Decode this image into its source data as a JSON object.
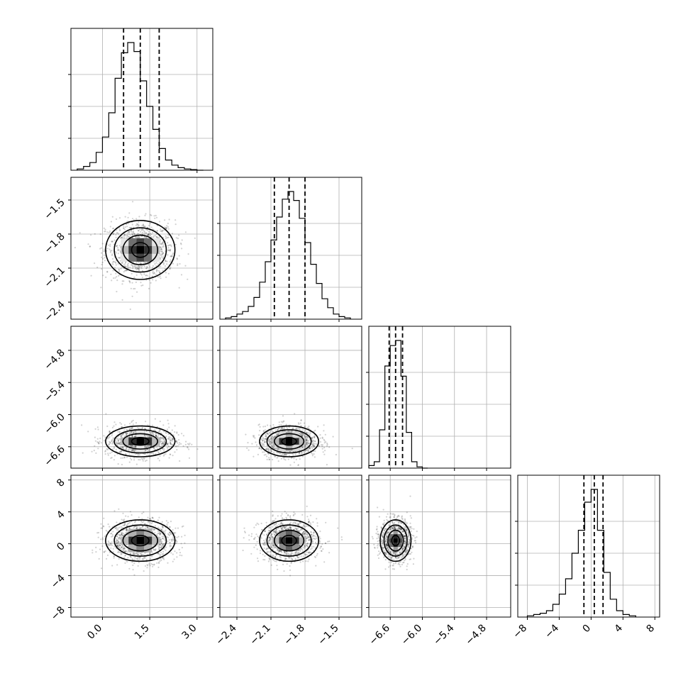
{
  "chart_data": {
    "type": "corner",
    "parameters": [
      {
        "range": [
          -1.0,
          3.5
        ],
        "ticks": [
          0.0,
          1.5,
          3.0
        ],
        "tick_labels": [
          "0.0",
          "1.5",
          "3.0"
        ],
        "quantiles": [
          0.67,
          1.2,
          1.8
        ],
        "center": 1.2,
        "spread": 0.55,
        "hist_bins": [
          -0.8,
          -0.6,
          -0.4,
          -0.2,
          0.0,
          0.2,
          0.4,
          0.6,
          0.8,
          1.0,
          1.2,
          1.4,
          1.6,
          1.8,
          2.0,
          2.2,
          2.4,
          2.6,
          2.8,
          3.0
        ],
        "hist_counts": [
          0.01,
          0.03,
          0.06,
          0.14,
          0.26,
          0.45,
          0.72,
          0.92,
          1.0,
          0.93,
          0.7,
          0.5,
          0.32,
          0.17,
          0.08,
          0.04,
          0.02,
          0.01,
          0.005,
          0.0
        ]
      },
      {
        "range": [
          -2.55,
          -1.3
        ],
        "ticks": [
          -2.4,
          -2.1,
          -1.8,
          -1.5
        ],
        "tick_labels": [
          "−2.4",
          "−2.1",
          "−1.8",
          "−1.5"
        ],
        "quantiles": [
          -2.07,
          -1.94,
          -1.8
        ],
        "center": -1.94,
        "spread": 0.13,
        "hist_bins": [
          -2.5,
          -2.45,
          -2.4,
          -2.35,
          -2.3,
          -2.25,
          -2.2,
          -2.15,
          -2.1,
          -2.05,
          -2.0,
          -1.95,
          -1.9,
          -1.85,
          -1.8,
          -1.75,
          -1.7,
          -1.65,
          -1.6,
          -1.55,
          -1.5,
          -1.45
        ],
        "hist_counts": [
          0.01,
          0.02,
          0.04,
          0.06,
          0.1,
          0.17,
          0.29,
          0.45,
          0.62,
          0.8,
          0.94,
          1.0,
          0.93,
          0.79,
          0.6,
          0.43,
          0.28,
          0.16,
          0.09,
          0.04,
          0.02,
          0.01
        ]
      },
      {
        "range": [
          -7.0,
          -4.35
        ],
        "ticks": [
          -6.6,
          -6.0,
          -5.4,
          -4.8
        ],
        "tick_labels": [
          "−6.6",
          "−6.0",
          "−5.4",
          "−4.8"
        ],
        "quantiles": [
          -6.62,
          -6.5,
          -6.37
        ],
        "center": -6.5,
        "spread": 0.12,
        "hist_bins": [
          -7.0,
          -6.9,
          -6.8,
          -6.7,
          -6.6,
          -6.5,
          -6.4,
          -6.3,
          -6.2,
          -6.1,
          -6.0
        ],
        "hist_counts": [
          0.02,
          0.05,
          0.3,
          0.8,
          0.96,
          1.0,
          0.72,
          0.28,
          0.05,
          0.01,
          0.0
        ]
      },
      {
        "range": [
          -9.2,
          8.6
        ],
        "ticks": [
          -8,
          -4,
          0,
          4,
          8
        ],
        "tick_labels": [
          "−8",
          "−4",
          "0",
          "4",
          "8"
        ],
        "quantiles": [
          -0.9,
          0.4,
          1.5
        ],
        "center": 0.4,
        "spread": 1.3,
        "hist_bins": [
          -8,
          -7.2,
          -6.4,
          -5.6,
          -4.8,
          -4.0,
          -3.2,
          -2.4,
          -1.6,
          -0.8,
          0.0,
          0.8,
          1.6,
          2.4,
          3.2,
          4.0,
          4.8
        ],
        "hist_counts": [
          0.01,
          0.02,
          0.03,
          0.05,
          0.1,
          0.18,
          0.3,
          0.5,
          0.68,
          0.9,
          1.0,
          0.68,
          0.35,
          0.14,
          0.05,
          0.02,
          0.01
        ]
      }
    ],
    "correlation": [
      [
        0,
        0,
        0,
        0
      ],
      [
        0,
        0,
        0,
        0
      ],
      [
        0,
        0,
        0,
        0
      ],
      [
        0,
        0,
        0,
        0
      ]
    ],
    "samples_per_panel": 1100,
    "grid": true
  }
}
